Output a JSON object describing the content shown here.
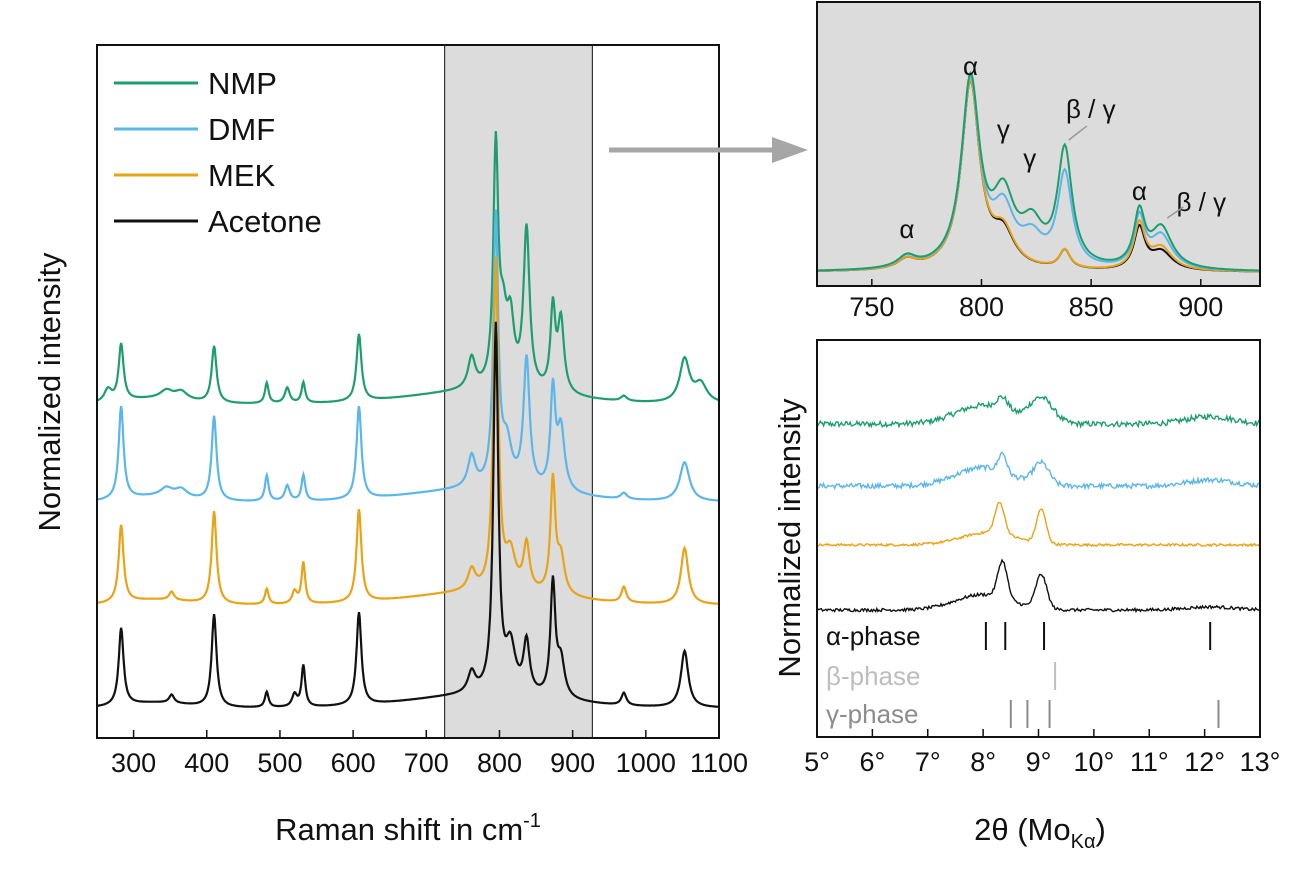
{
  "colors": {
    "NMP": "#1e9e6e",
    "DMF": "#5bb6ea",
    "MEK": "#e8a317",
    "Acetone": "#111111",
    "shade": "#dcdcdc",
    "arrow": "#a6a6a6",
    "alpha_phase": "#111111",
    "beta_phase": "#bdbdbd",
    "gamma_phase": "#8c8c8c"
  },
  "chart_data": [
    {
      "type": "line",
      "title": "",
      "xlabel": "Raman shift in cm",
      "xlabel_sup": "-1",
      "ylabel": "Normalized intensity",
      "xlim": [
        250,
        1100
      ],
      "xticks": [
        "300",
        "400",
        "500",
        "600",
        "700",
        "800",
        "900",
        "1000",
        "1100"
      ],
      "shaded_region": [
        725,
        927
      ],
      "legend": [
        "NMP",
        "DMF",
        "MEK",
        "Acetone"
      ],
      "series": [
        {
          "name": "NMP",
          "offset": 2.95,
          "peaks": [
            [
              283,
              0.55,
              4
            ],
            [
              265,
              0.12,
              6
            ],
            [
              345,
              0.08,
              10
            ],
            [
              365,
              0.08,
              10
            ],
            [
              410,
              0.55,
              4
            ],
            [
              482,
              0.2,
              3
            ],
            [
              510,
              0.15,
              4
            ],
            [
              532,
              0.2,
              3
            ],
            [
              608,
              0.65,
              4
            ],
            [
              762,
              0.3,
              6
            ],
            [
              795,
              2.3,
              4
            ],
            [
              805,
              0.55,
              6
            ],
            [
              815,
              0.6,
              6
            ],
            [
              837,
              1.55,
              5
            ],
            [
              873,
              0.8,
              4
            ],
            [
              884,
              0.7,
              5
            ],
            [
              970,
              0.05,
              5
            ],
            [
              1053,
              0.42,
              8
            ],
            [
              1075,
              0.18,
              10
            ]
          ]
        },
        {
          "name": "DMF",
          "offset": 2.0,
          "peaks": [
            [
              283,
              0.9,
              4
            ],
            [
              345,
              0.08,
              10
            ],
            [
              365,
              0.08,
              10
            ],
            [
              410,
              0.82,
              4
            ],
            [
              482,
              0.25,
              3
            ],
            [
              510,
              0.15,
              4
            ],
            [
              532,
              0.25,
              3
            ],
            [
              608,
              0.9,
              4
            ],
            [
              762,
              0.3,
              6
            ],
            [
              795,
              2.6,
              4
            ],
            [
              810,
              0.4,
              8
            ],
            [
              837,
              1.25,
              5
            ],
            [
              873,
              0.95,
              4
            ],
            [
              884,
              0.6,
              6
            ],
            [
              970,
              0.06,
              5
            ],
            [
              1053,
              0.38,
              8
            ]
          ]
        },
        {
          "name": "MEK",
          "offset": 1.0,
          "peaks": [
            [
              283,
              0.75,
              4
            ],
            [
              352,
              0.08,
              4
            ],
            [
              410,
              0.9,
              4
            ],
            [
              482,
              0.15,
              3
            ],
            [
              520,
              0.12,
              4
            ],
            [
              532,
              0.4,
              3
            ],
            [
              608,
              0.9,
              4
            ],
            [
              762,
              0.2,
              6
            ],
            [
              795,
              3.2,
              4
            ],
            [
              815,
              0.35,
              8
            ],
            [
              837,
              0.45,
              5
            ],
            [
              873,
              1.1,
              4
            ],
            [
              884,
              0.35,
              6
            ],
            [
              970,
              0.15,
              4
            ],
            [
              1053,
              0.55,
              6
            ]
          ]
        },
        {
          "name": "Acetone",
          "offset": 0.0,
          "peaks": [
            [
              283,
              0.75,
              4
            ],
            [
              352,
              0.08,
              4
            ],
            [
              410,
              0.9,
              4
            ],
            [
              482,
              0.15,
              3
            ],
            [
              520,
              0.12,
              4
            ],
            [
              532,
              0.4,
              3
            ],
            [
              608,
              0.9,
              4
            ],
            [
              762,
              0.2,
              6
            ],
            [
              795,
              3.55,
              4
            ],
            [
              815,
              0.45,
              8
            ],
            [
              837,
              0.5,
              5
            ],
            [
              873,
              1.1,
              4
            ],
            [
              884,
              0.35,
              6
            ],
            [
              970,
              0.12,
              4
            ],
            [
              1053,
              0.55,
              6
            ]
          ]
        }
      ]
    },
    {
      "type": "line",
      "title": "",
      "xlim": [
        725,
        927
      ],
      "xticks": [
        "750",
        "800",
        "850",
        "900"
      ],
      "annotations": [
        {
          "label": "α",
          "x": 766
        },
        {
          "label": "α",
          "x": 795
        },
        {
          "label": "γ",
          "x": 810
        },
        {
          "label": "γ",
          "x": 822
        },
        {
          "label": "β / γ",
          "x": 838
        },
        {
          "label": "α",
          "x": 872
        },
        {
          "label": "β / γ",
          "x": 882
        }
      ],
      "series": [
        {
          "name": "NMP",
          "peaks": [
            [
              766,
              0.06,
              5
            ],
            [
              795,
              1.0,
              5
            ],
            [
              810,
              0.35,
              6
            ],
            [
              823,
              0.2,
              6
            ],
            [
              838,
              0.62,
              4
            ],
            [
              872,
              0.28,
              3
            ],
            [
              882,
              0.22,
              6
            ]
          ]
        },
        {
          "name": "DMF",
          "peaks": [
            [
              766,
              0.06,
              5
            ],
            [
              795,
              1.0,
              5
            ],
            [
              810,
              0.28,
              6
            ],
            [
              823,
              0.14,
              6
            ],
            [
              838,
              0.5,
              4
            ],
            [
              872,
              0.26,
              3
            ],
            [
              882,
              0.18,
              6
            ]
          ]
        },
        {
          "name": "MEK",
          "peaks": [
            [
              766,
              0.05,
              5
            ],
            [
              795,
              1.0,
              5
            ],
            [
              810,
              0.18,
              6
            ],
            [
              838,
              0.1,
              3
            ],
            [
              872,
              0.24,
              3
            ],
            [
              882,
              0.12,
              6
            ]
          ]
        },
        {
          "name": "Acetone",
          "peaks": [
            [
              766,
              0.05,
              5
            ],
            [
              795,
              1.0,
              5
            ],
            [
              810,
              0.17,
              6
            ],
            [
              838,
              0.1,
              3
            ],
            [
              872,
              0.22,
              3
            ],
            [
              882,
              0.1,
              6
            ]
          ]
        }
      ]
    },
    {
      "type": "line",
      "title": "",
      "xlabel": "2θ (Mo",
      "xlabel_sub": "Kα",
      "xlabel_end": ")",
      "ylabel": "Normalized intensity",
      "xlim": [
        5,
        13
      ],
      "xticks": [
        "5°",
        "6°",
        "7°",
        "8°",
        "9°",
        "10°",
        "11°",
        "12°",
        "13°"
      ],
      "series": [
        {
          "name": "NMP",
          "offset": 3.0,
          "noise": 0.09,
          "peaks": [
            [
              8.0,
              0.3,
              0.7
            ],
            [
              8.35,
              0.2,
              0.15
            ],
            [
              9.05,
              0.4,
              0.3
            ],
            [
              12.1,
              0.12,
              0.6
            ]
          ]
        },
        {
          "name": "DMF",
          "offset": 2.0,
          "noise": 0.08,
          "peaks": [
            [
              8.0,
              0.3,
              0.7
            ],
            [
              8.35,
              0.3,
              0.1
            ],
            [
              9.05,
              0.35,
              0.2
            ],
            [
              12.1,
              0.1,
              0.6
            ]
          ]
        },
        {
          "name": "MEK",
          "offset": 1.05,
          "noise": 0.04,
          "peaks": [
            [
              8.1,
              0.2,
              0.7
            ],
            [
              8.3,
              0.5,
              0.12
            ],
            [
              9.05,
              0.55,
              0.12
            ]
          ]
        },
        {
          "name": "Acetone",
          "offset": 0.0,
          "noise": 0.05,
          "peaks": [
            [
              8.0,
              0.25,
              0.7
            ],
            [
              8.35,
              0.6,
              0.12
            ],
            [
              9.05,
              0.55,
              0.14
            ],
            [
              12.1,
              0.05,
              0.6
            ]
          ]
        }
      ],
      "phase_markers": [
        {
          "label": "α-phase",
          "positions": [
            8.05,
            8.4,
            9.1,
            12.1
          ]
        },
        {
          "label": "β-phase",
          "positions": [
            9.3
          ]
        },
        {
          "label": "γ-phase",
          "positions": [
            8.5,
            8.8,
            9.2,
            12.25
          ]
        }
      ]
    }
  ]
}
